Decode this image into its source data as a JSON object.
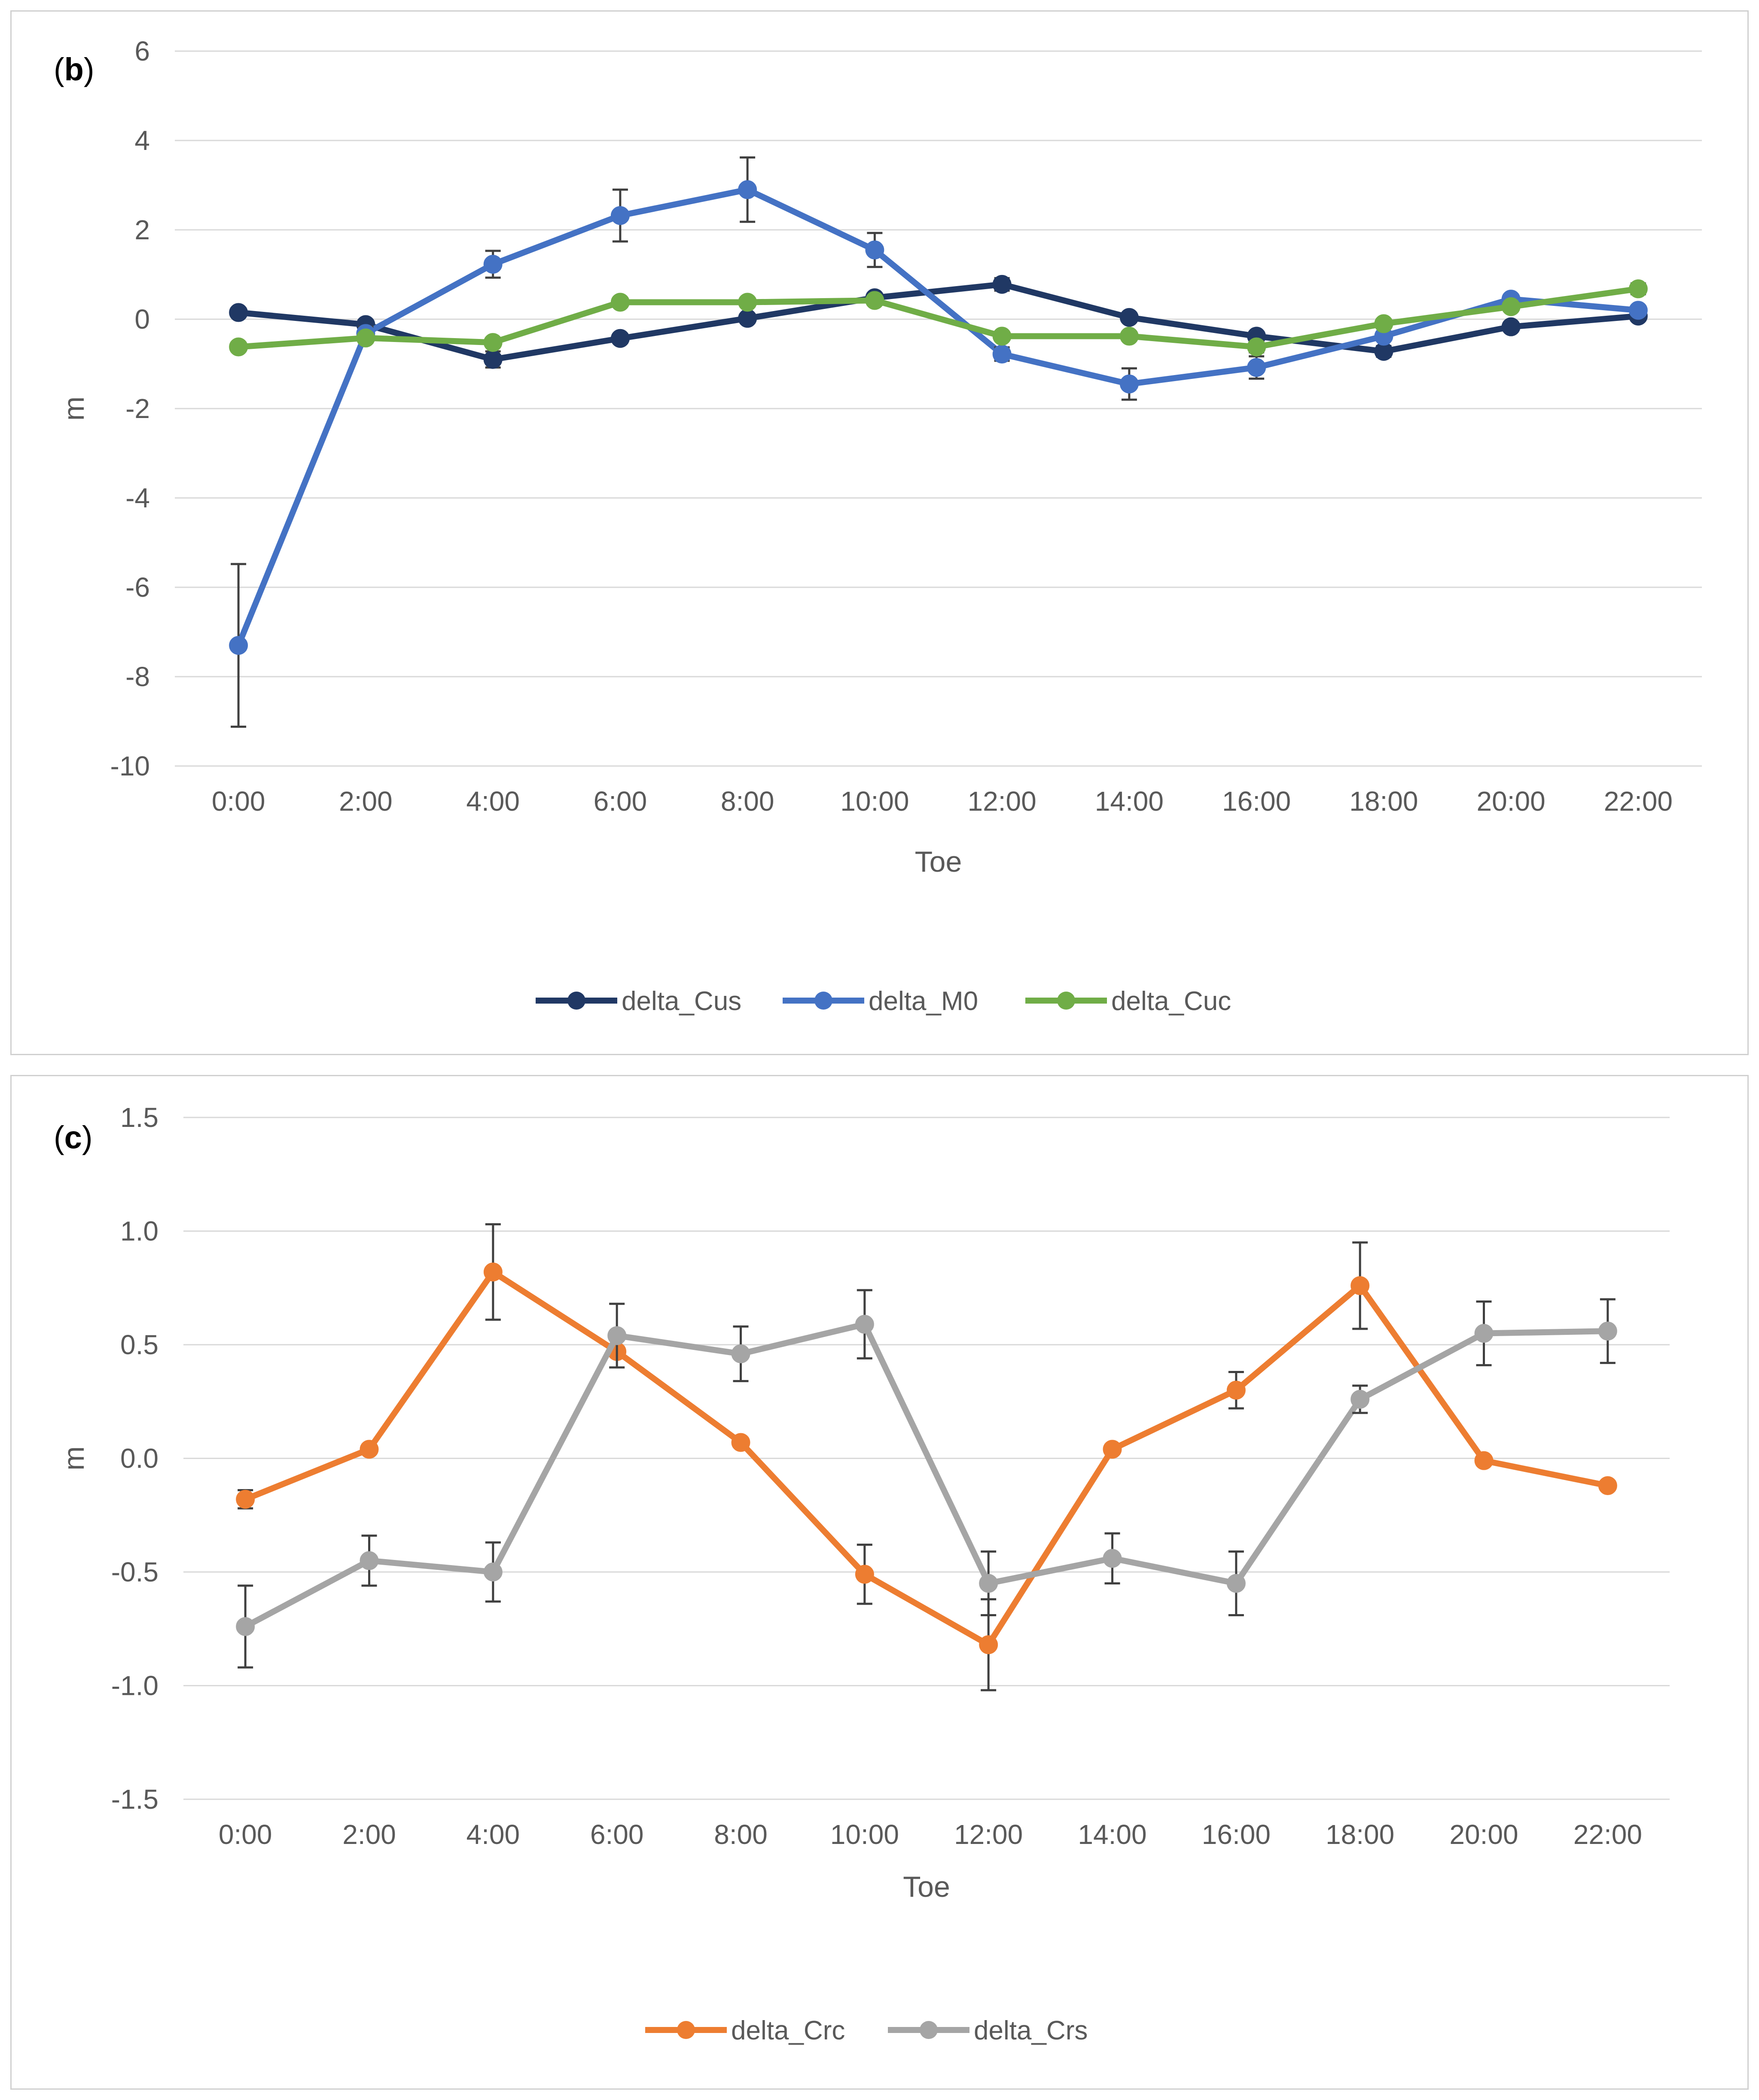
{
  "colors": {
    "delta_Cus": "#203864",
    "delta_M0": "#4472C4",
    "delta_Cuc": "#70AD47",
    "delta_Crc": "#ED7D31",
    "delta_Crs": "#A5A5A5",
    "grid": "#d9d9d9",
    "errorbar": "#404040",
    "tick_text": "#595959"
  },
  "chart_data": [
    {
      "id": "b",
      "type": "line",
      "panel_label": "b",
      "xlabel": "Toe",
      "ylabel": "m",
      "ylim": [
        -10,
        6
      ],
      "yticks": [
        6,
        4,
        2,
        0,
        -2,
        -4,
        -6,
        -8,
        -10
      ],
      "yticks_text": [
        "6",
        "4",
        "2",
        "0",
        "-2",
        "-4",
        "-6",
        "-8",
        "-10"
      ],
      "categories": [
        "0:00",
        "2:00",
        "4:00",
        "6:00",
        "8:00",
        "10:00",
        "12:00",
        "14:00",
        "16:00",
        "18:00",
        "20:00",
        "22:00"
      ],
      "legend_position": "bottom",
      "series": [
        {
          "name": "delta_Cus",
          "color_key": "delta_Cus",
          "values": [
            0.15,
            -0.12,
            -0.9,
            -0.43,
            0.02,
            0.48,
            0.78,
            0.04,
            -0.38,
            -0.72,
            -0.17,
            0.07
          ],
          "errors": [
            0.1,
            0.1,
            0.18,
            0.1,
            0.1,
            0.1,
            0.14,
            0.1,
            0.1,
            0.12,
            0.1,
            0.1
          ]
        },
        {
          "name": "delta_M0",
          "color_key": "delta_M0",
          "values": [
            -7.3,
            -0.32,
            1.23,
            2.32,
            2.9,
            1.55,
            -0.78,
            -1.45,
            -1.08,
            -0.38,
            0.45,
            0.2
          ],
          "errors": [
            1.82,
            0.15,
            0.3,
            0.58,
            0.72,
            0.38,
            0.15,
            0.35,
            0.25,
            0.1,
            0.1,
            0.1
          ]
        },
        {
          "name": "delta_Cuc",
          "color_key": "delta_Cuc",
          "values": [
            -0.62,
            -0.42,
            -0.52,
            0.38,
            0.38,
            0.42,
            -0.38,
            -0.38,
            -0.62,
            -0.1,
            0.28,
            0.68
          ],
          "errors": [
            0.1,
            0.1,
            0.1,
            0.1,
            0.1,
            0.1,
            0.1,
            0.1,
            0.12,
            0.1,
            0.1,
            0.12
          ]
        }
      ]
    },
    {
      "id": "c",
      "type": "line",
      "panel_label": "c",
      "xlabel": "Toe",
      "ylabel": "m",
      "ylim": [
        -1.5,
        1.5
      ],
      "yticks": [
        1.5,
        1.0,
        0.5,
        0.0,
        -0.5,
        -1.0,
        -1.5
      ],
      "yticks_text": [
        "1.5",
        "1.0",
        "0.5",
        "0.0",
        "-0.5",
        "-1.0",
        "-1.5"
      ],
      "categories": [
        "0:00",
        "2:00",
        "4:00",
        "6:00",
        "8:00",
        "10:00",
        "12:00",
        "14:00",
        "16:00",
        "18:00",
        "20:00",
        "22:00"
      ],
      "legend_position": "bottom",
      "series": [
        {
          "name": "delta_Crc",
          "color_key": "delta_Crc",
          "values": [
            -0.18,
            0.04,
            0.82,
            0.47,
            0.07,
            -0.51,
            -0.82,
            0.04,
            0.3,
            0.76,
            -0.01,
            -0.12
          ],
          "errors": [
            0.04,
            0.02,
            0.21,
            0.02,
            0.02,
            0.13,
            0.2,
            0.02,
            0.08,
            0.19,
            0.02,
            0.02
          ]
        },
        {
          "name": "delta_Crs",
          "color_key": "delta_Crs",
          "values": [
            -0.74,
            -0.45,
            -0.5,
            0.54,
            0.46,
            0.59,
            -0.55,
            -0.44,
            -0.55,
            0.26,
            0.55,
            0.56
          ],
          "errors": [
            0.18,
            0.11,
            0.13,
            0.14,
            0.12,
            0.15,
            0.14,
            0.11,
            0.14,
            0.06,
            0.14,
            0.14
          ]
        }
      ]
    }
  ]
}
